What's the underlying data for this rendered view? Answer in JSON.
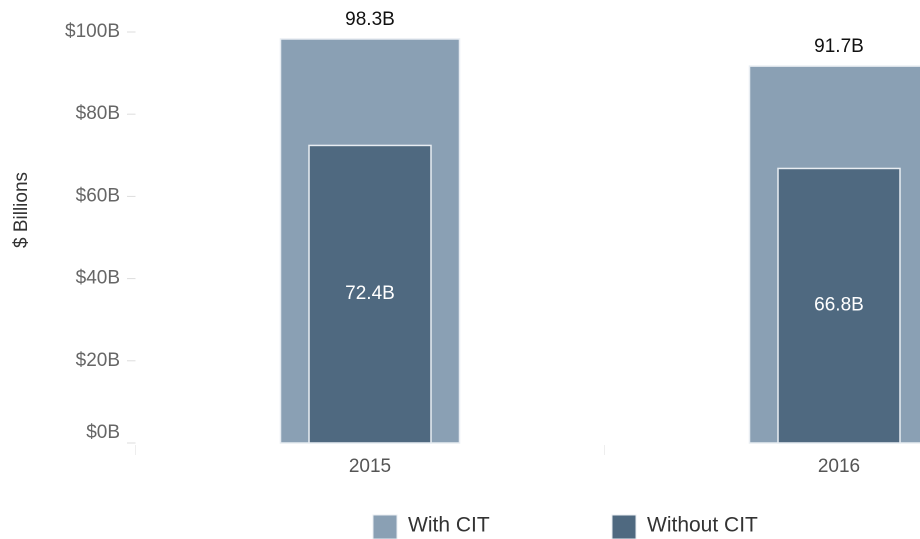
{
  "chart_data": {
    "type": "bar",
    "y_label": "$ Billions",
    "categories": [
      "2015",
      "2016"
    ],
    "series": [
      {
        "name": "With CIT",
        "color": "#8aa0b4",
        "values": [
          98.3,
          91.7
        ],
        "value_labels": [
          "98.3B",
          "91.7B"
        ]
      },
      {
        "name": "Without CIT",
        "color": "#4f6980",
        "values": [
          72.4,
          66.8
        ],
        "value_labels": [
          "72.4B",
          "66.8B"
        ]
      }
    ],
    "ylim": [
      0,
      100
    ],
    "yticks": [
      {
        "value": 0,
        "label": "$0B"
      },
      {
        "value": 20,
        "label": "$20B"
      },
      {
        "value": 40,
        "label": "$40B"
      },
      {
        "value": 60,
        "label": "$60B"
      },
      {
        "value": 80,
        "label": "$80B"
      },
      {
        "value": 100,
        "label": "$100B"
      }
    ]
  }
}
